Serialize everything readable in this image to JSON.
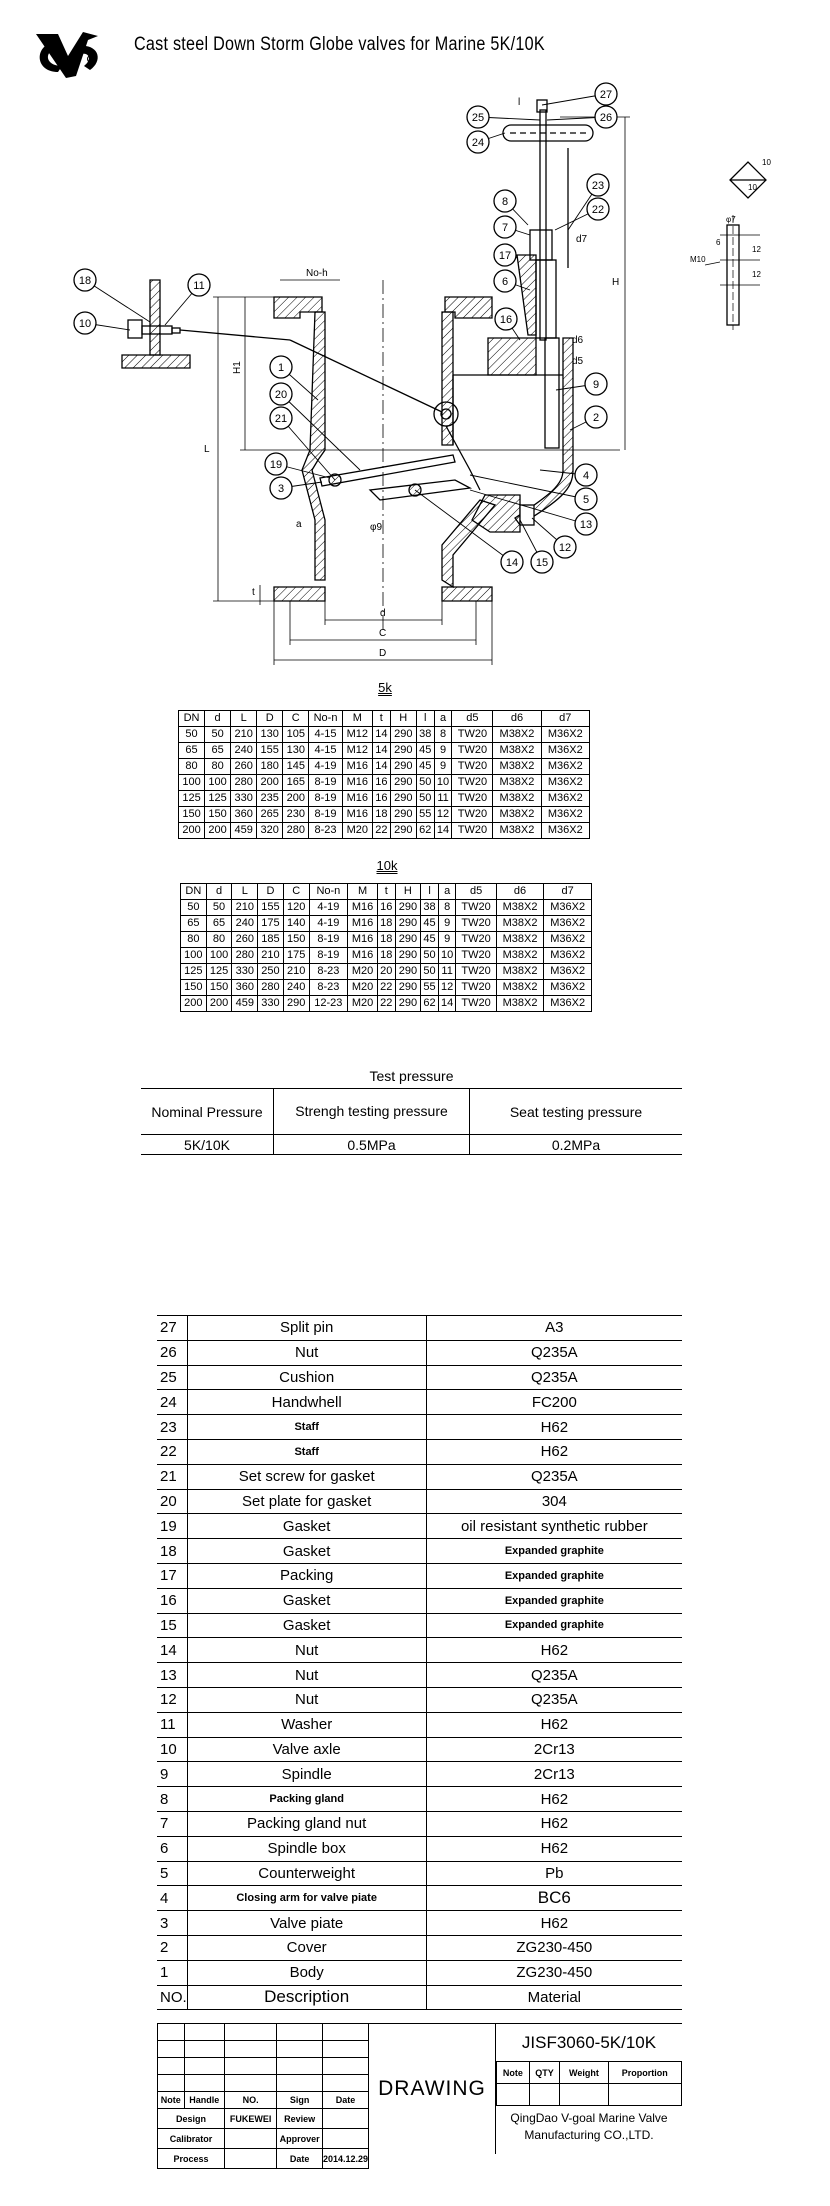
{
  "header": {
    "title": "Cast steel Down Storm Globe valves for Marine 5K/10K",
    "logo": "VG"
  },
  "drawing": {
    "balloons": [
      "1",
      "2",
      "3",
      "4",
      "5",
      "6",
      "7",
      "8",
      "9",
      "10",
      "11",
      "12",
      "13",
      "14",
      "15",
      "16",
      "17",
      "18",
      "19",
      "20",
      "21",
      "22",
      "23",
      "24",
      "25",
      "26",
      "27"
    ],
    "dim_labels": {
      "no_h": "No-h",
      "H1": "H1",
      "L": "L",
      "H": "H",
      "a": "a",
      "t": "t",
      "d": "d",
      "C": "C",
      "D": "D",
      "d5": "d5",
      "d6": "d6",
      "d7": "d7",
      "phi9": "φ9",
      "l": "l"
    },
    "detail_labels": {
      "m10": "M10",
      "phi7": "φ7",
      "six": "6",
      "twelve_a": "12",
      "twelve_b": "12",
      "ten_a": "10",
      "ten_b": "10"
    }
  },
  "tables": {
    "headers": [
      "DN",
      "d",
      "L",
      "D",
      "C",
      "No-n",
      "M",
      "t",
      "H",
      "l",
      "a",
      "d5",
      "d6",
      "d7"
    ],
    "k5": {
      "title": "5k",
      "rows": [
        [
          "50",
          "50",
          "210",
          "130",
          "105",
          "4-15",
          "M12",
          "14",
          "290",
          "38",
          "8",
          "TW20",
          "M38X2",
          "M36X2"
        ],
        [
          "65",
          "65",
          "240",
          "155",
          "130",
          "4-15",
          "M12",
          "14",
          "290",
          "45",
          "9",
          "TW20",
          "M38X2",
          "M36X2"
        ],
        [
          "80",
          "80",
          "260",
          "180",
          "145",
          "4-19",
          "M16",
          "14",
          "290",
          "45",
          "9",
          "TW20",
          "M38X2",
          "M36X2"
        ],
        [
          "100",
          "100",
          "280",
          "200",
          "165",
          "8-19",
          "M16",
          "16",
          "290",
          "50",
          "10",
          "TW20",
          "M38X2",
          "M36X2"
        ],
        [
          "125",
          "125",
          "330",
          "235",
          "200",
          "8-19",
          "M16",
          "16",
          "290",
          "50",
          "11",
          "TW20",
          "M38X2",
          "M36X2"
        ],
        [
          "150",
          "150",
          "360",
          "265",
          "230",
          "8-19",
          "M16",
          "18",
          "290",
          "55",
          "12",
          "TW20",
          "M38X2",
          "M36X2"
        ],
        [
          "200",
          "200",
          "459",
          "320",
          "280",
          "8-23",
          "M20",
          "22",
          "290",
          "62",
          "14",
          "TW20",
          "M38X2",
          "M36X2"
        ]
      ]
    },
    "k10": {
      "title": "10k",
      "rows": [
        [
          "50",
          "50",
          "210",
          "155",
          "120",
          "4-19",
          "M16",
          "16",
          "290",
          "38",
          "8",
          "TW20",
          "M38X2",
          "M36X2"
        ],
        [
          "65",
          "65",
          "240",
          "175",
          "140",
          "4-19",
          "M16",
          "18",
          "290",
          "45",
          "9",
          "TW20",
          "M38X2",
          "M36X2"
        ],
        [
          "80",
          "80",
          "260",
          "185",
          "150",
          "8-19",
          "M16",
          "18",
          "290",
          "45",
          "9",
          "TW20",
          "M38X2",
          "M36X2"
        ],
        [
          "100",
          "100",
          "280",
          "210",
          "175",
          "8-19",
          "M16",
          "18",
          "290",
          "50",
          "10",
          "TW20",
          "M38X2",
          "M36X2"
        ],
        [
          "125",
          "125",
          "330",
          "250",
          "210",
          "8-23",
          "M20",
          "20",
          "290",
          "50",
          "11",
          "TW20",
          "M38X2",
          "M36X2"
        ],
        [
          "150",
          "150",
          "360",
          "280",
          "240",
          "8-23",
          "M20",
          "22",
          "290",
          "55",
          "12",
          "TW20",
          "M38X2",
          "M36X2"
        ],
        [
          "200",
          "200",
          "459",
          "330",
          "290",
          "12-23",
          "M20",
          "22",
          "290",
          "62",
          "14",
          "TW20",
          "M38X2",
          "M36X2"
        ]
      ]
    }
  },
  "test_pressure": {
    "title": "Test pressure",
    "headers": [
      "Nominal Pressure",
      "Strengh testing pressure",
      "Seat testing pressure"
    ],
    "row": [
      "5K/10K",
      "0.5MPa",
      "0.2MPa"
    ]
  },
  "parts": [
    {
      "no": "27",
      "desc": "Split pin",
      "mat": "A3"
    },
    {
      "no": "26",
      "desc": "Nut",
      "mat": "Q235A"
    },
    {
      "no": "25",
      "desc": "Cushion",
      "mat": "Q235A"
    },
    {
      "no": "24",
      "desc": "Handwhell",
      "mat": "FC200"
    },
    {
      "no": "23",
      "desc": "Staff",
      "mat": "H62",
      "ds": 1
    },
    {
      "no": "22",
      "desc": "Staff",
      "mat": "H62",
      "ds": 1
    },
    {
      "no": "21",
      "desc": "Set screw for gasket",
      "mat": "Q235A"
    },
    {
      "no": "20",
      "desc": "Set plate for gasket",
      "mat": "304"
    },
    {
      "no": "19",
      "desc": "Gasket",
      "mat": "oil resistant synthetic rubber"
    },
    {
      "no": "18",
      "desc": "Gasket",
      "mat": "Expanded graphite",
      "ms": 1
    },
    {
      "no": "17",
      "desc": "Packing",
      "mat": "Expanded graphite",
      "ms": 1
    },
    {
      "no": "16",
      "desc": "Gasket",
      "mat": "Expanded graphite",
      "ms": 1
    },
    {
      "no": "15",
      "desc": "Gasket",
      "mat": "Expanded graphite",
      "ms": 1
    },
    {
      "no": "14",
      "desc": "Nut",
      "mat": "H62"
    },
    {
      "no": "13",
      "desc": "Nut",
      "mat": "Q235A"
    },
    {
      "no": "12",
      "desc": "Nut",
      "mat": "Q235A"
    },
    {
      "no": "11",
      "desc": "Washer",
      "mat": "H62"
    },
    {
      "no": "10",
      "desc": "Valve axle",
      "mat": "2Cr13"
    },
    {
      "no": "9",
      "desc": "Spindle",
      "mat": "2Cr13"
    },
    {
      "no": "8",
      "desc": "Packing gland",
      "mat": "H62",
      "ds": 1
    },
    {
      "no": "7",
      "desc": "Packing gland nut",
      "mat": "H62"
    },
    {
      "no": "6",
      "desc": "Spindle box",
      "mat": "H62"
    },
    {
      "no": "5",
      "desc": "Counterweight",
      "mat": "Pb"
    },
    {
      "no": "4",
      "desc": "Closing arm for valve piate",
      "mat": "BC6",
      "ds": 1,
      "mb": 1
    },
    {
      "no": "3",
      "desc": "Valve piate",
      "mat": "H62"
    },
    {
      "no": "2",
      "desc": "Cover",
      "mat": "ZG230-450"
    },
    {
      "no": "1",
      "desc": "Body",
      "mat": "ZG230-450"
    }
  ],
  "parts_header": {
    "no": "NO.",
    "desc": "Description",
    "mat": "Material"
  },
  "title_block": {
    "sign_headers": [
      "Note",
      "Handle",
      "NO.",
      "Sign",
      "Date"
    ],
    "design": "Design",
    "designer": "FUKEWEI",
    "review": "Review",
    "calibrator": "Calibrator",
    "approver": "Approver",
    "process": "Process",
    "date_label": "Date",
    "date": "2014.12.29",
    "drawing": "DRAWING",
    "code": "JISF3060-5K/10K",
    "info_headers": [
      "Note",
      "QTY",
      "Weight",
      "Proportion"
    ],
    "company_1": "QingDao V-goal Marine Valve",
    "company_2": "Manufacturing CO.,LTD."
  }
}
